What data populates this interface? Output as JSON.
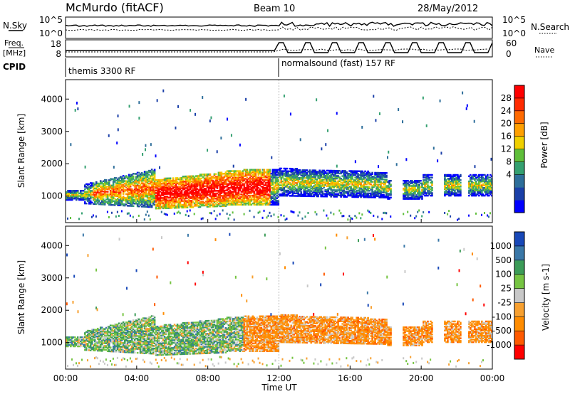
{
  "header": {
    "title": "McMurdo (fitACF)",
    "beam": "Beam 10",
    "date": "28/May/2012"
  },
  "noise_panel": {
    "left_label": "N.Sky",
    "right_label": "N.Search",
    "y_ticks": [
      "10^5",
      "10^0"
    ],
    "right_ticks": [
      "10^5",
      "10^0"
    ]
  },
  "freq_panel": {
    "left_label_top": "Freq.",
    "left_label_bottom": "[MHz]",
    "right_label": "Nave",
    "y_ticks": [
      "18",
      "8"
    ],
    "right_ticks": [
      "60",
      "0"
    ]
  },
  "cpid_panel": {
    "label": "CPID",
    "segments": [
      {
        "start": "00:00",
        "label": "themis 3300 RF"
      },
      {
        "start": "12:00",
        "label": "normalsound (fast) 157 RF"
      }
    ]
  },
  "x_axis": {
    "label": "Time UT",
    "ticks": [
      "00:00",
      "04:00",
      "08:00",
      "12:00",
      "16:00",
      "20:00",
      "00:00"
    ],
    "range_hours": [
      0,
      24
    ]
  },
  "chart_data": [
    {
      "type": "heatmap",
      "name": "power",
      "ylabel": "Slant Range [km]",
      "y_ticks": [
        1000,
        2000,
        3000,
        4000
      ],
      "ylim": [
        180,
        4600
      ],
      "colorbar": {
        "label": "Power [dB]",
        "ticks": [
          "28",
          "24",
          "20",
          "16",
          "12",
          "8",
          "4"
        ],
        "colors": [
          "#0000ff",
          "#1a3fa8",
          "#2d6e9a",
          "#34a070",
          "#5fbf3a",
          "#f0d000",
          "#ffa000",
          "#ff6a00",
          "#ff2a00",
          "#ff0000"
        ]
      }
    },
    {
      "type": "heatmap",
      "name": "velocity",
      "ylabel": "Slant Range [km]",
      "y_ticks": [
        1000,
        2000,
        3000,
        4000
      ],
      "ylim": [
        180,
        4600
      ],
      "colorbar": {
        "label": "Velocity [m s-1]",
        "ticks": [
          "1000",
          "500",
          "100",
          "25",
          "-25",
          "-100",
          "-500",
          "-1000"
        ],
        "colors": [
          "#ff0000",
          "#ff5a00",
          "#ff8c00",
          "#f7a030",
          "#c8c8c8",
          "#76c442",
          "#3c9c58",
          "#3a78a8",
          "#1848b8"
        ]
      }
    }
  ]
}
